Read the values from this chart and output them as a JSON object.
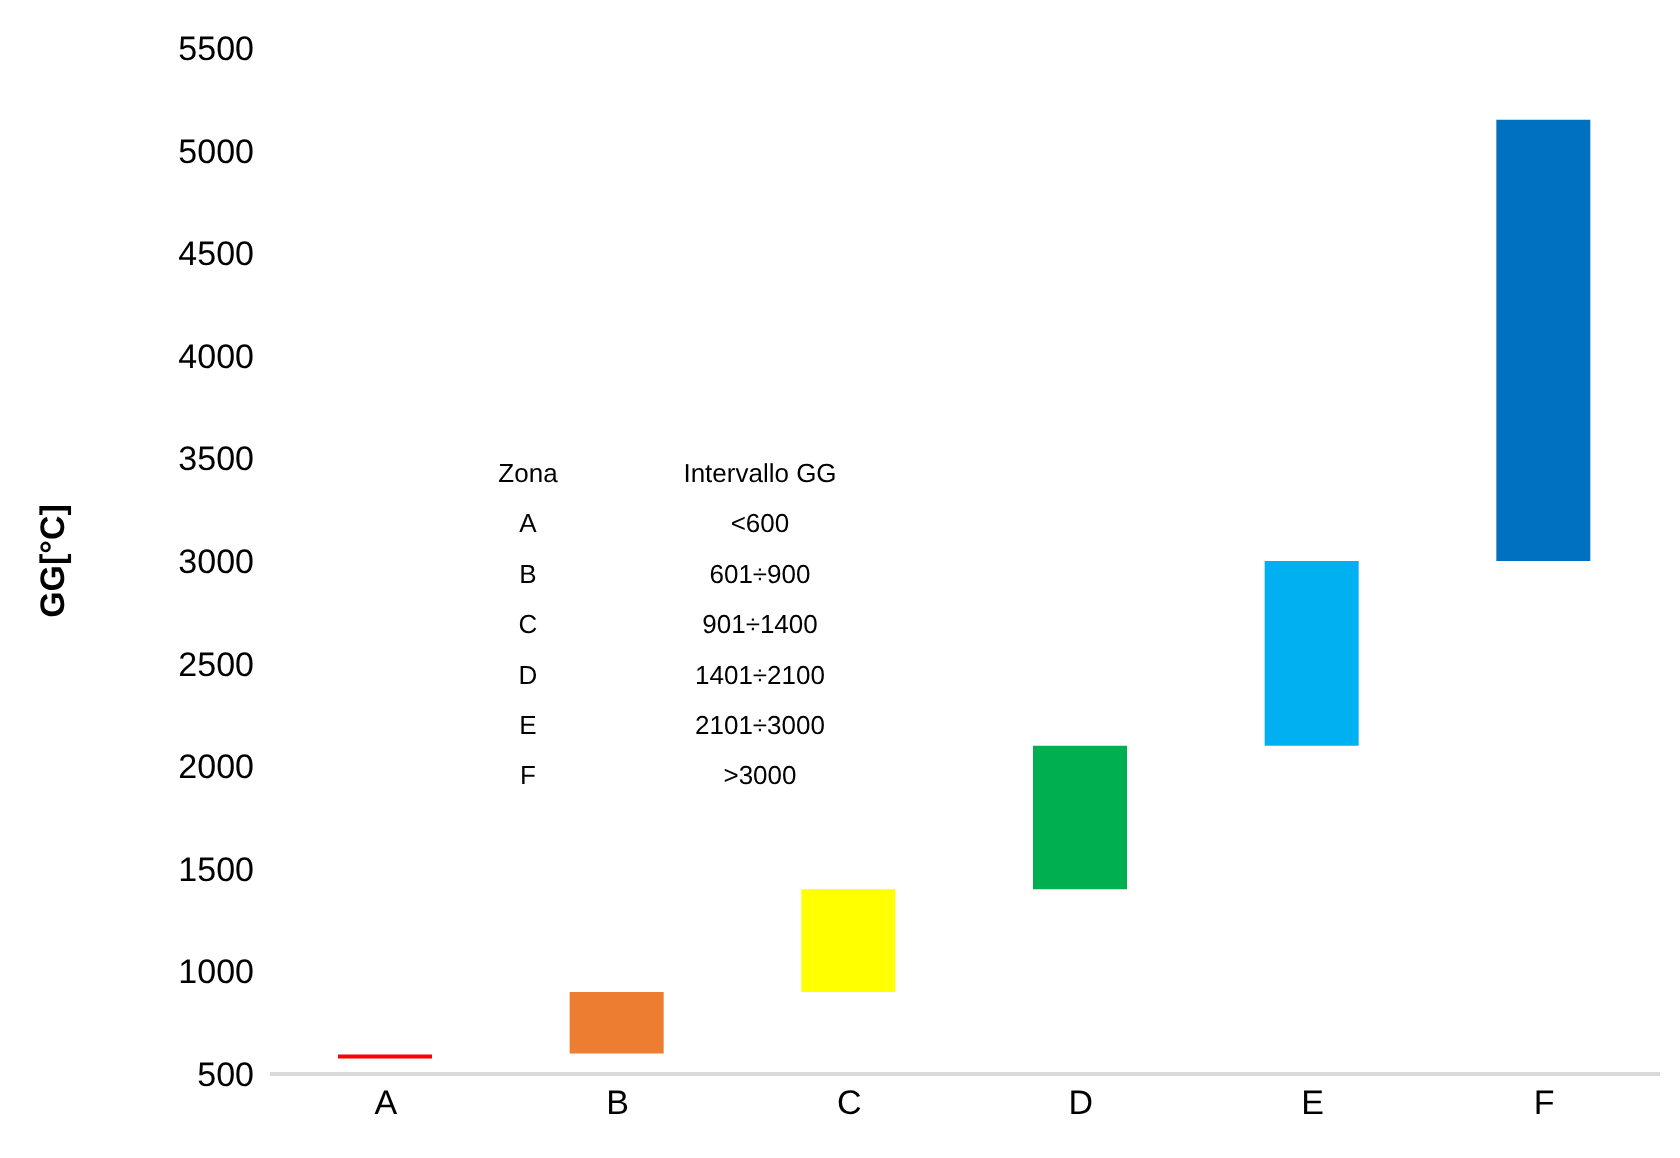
{
  "chart_data": {
    "type": "bar",
    "ylabel": "GG[°C]",
    "categories": [
      "A",
      "B",
      "C",
      "D",
      "E",
      "F"
    ],
    "base": [
      575,
      600,
      900,
      1400,
      2100,
      3000
    ],
    "values": [
      20,
      300,
      500,
      700,
      900,
      2150
    ],
    "colors": [
      "#ff0000",
      "#ed7d31",
      "#ffff00",
      "#00b050",
      "#00b0f0",
      "#0070c0"
    ],
    "ylim": [
      500,
      5500
    ],
    "yticks": [
      500,
      1000,
      1500,
      2000,
      2500,
      3000,
      3500,
      4000,
      4500,
      5000,
      5500
    ],
    "grid": false,
    "legend": false,
    "annotations": [
      "Zona",
      "Intervallo GG",
      "A",
      "<600",
      "B",
      "601÷900",
      "C",
      "901÷1400",
      "D",
      "1401÷2100",
      "E",
      "2101÷3000",
      "F",
      ">3000"
    ]
  }
}
